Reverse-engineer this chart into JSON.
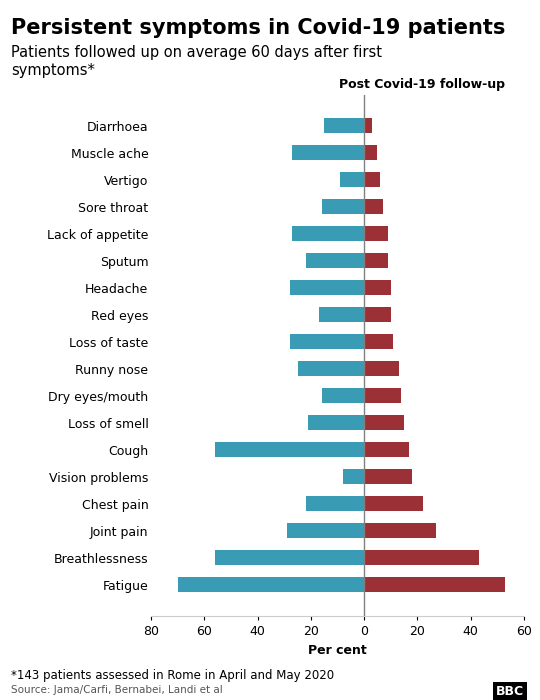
{
  "title": "Persistent symptoms in Covid-19 patients",
  "subtitle": "Patients followed up on average 60 days after first\nsymptoms*",
  "col_right_label": "Post Covid-19 follow-up",
  "xlabel": "Per cent",
  "footnote": "*143 patients assessed in Rome in April and May 2020",
  "source": "Source: Jama/Carfi, Bernabei, Landi et al",
  "symptoms": [
    "Fatigue",
    "Breathlessness",
    "Joint pain",
    "Chest pain",
    "Vision problems",
    "Cough",
    "Loss of smell",
    "Dry eyes/mouth",
    "Runny nose",
    "Loss of taste",
    "Red eyes",
    "Headache",
    "Sputum",
    "Lack of appetite",
    "Sore throat",
    "Vertigo",
    "Muscle ache",
    "Diarrhoea"
  ],
  "acute": [
    70,
    56,
    29,
    22,
    8,
    56,
    21,
    16,
    25,
    28,
    17,
    28,
    22,
    27,
    16,
    9,
    27,
    15
  ],
  "followup": [
    53,
    43,
    27,
    22,
    18,
    17,
    15,
    14,
    13,
    11,
    10,
    10,
    9,
    9,
    7,
    6,
    5,
    3
  ],
  "color_acute": "#3a9bb5",
  "color_followup": "#9b3036",
  "background_color": "#ffffff",
  "title_fontsize": 15,
  "subtitle_fontsize": 10.5,
  "axis_fontsize": 9,
  "label_fontsize": 9,
  "xlim_left": 80,
  "xlim_right": 60
}
